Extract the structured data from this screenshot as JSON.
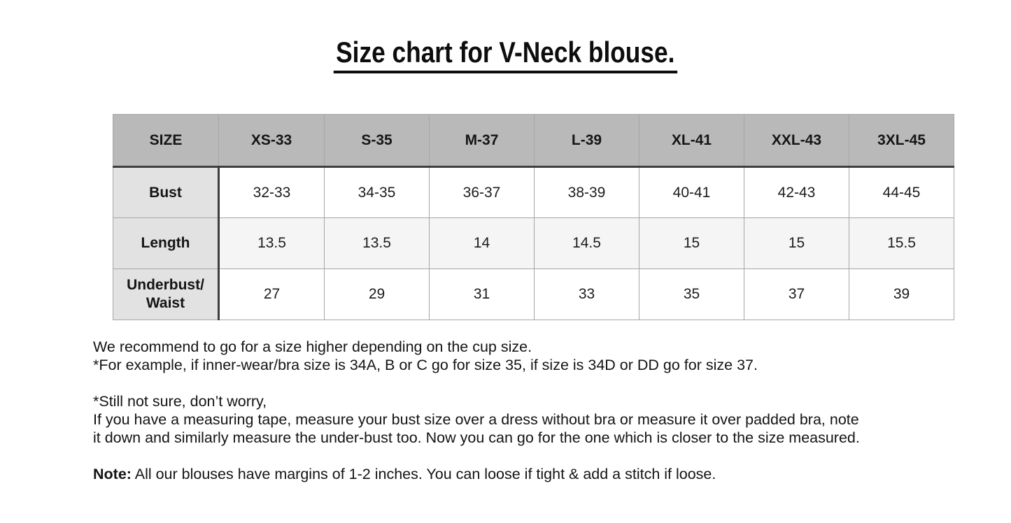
{
  "title": "Size chart for V-Neck blouse.",
  "colors": {
    "header_bg": "#b9b9b9",
    "label_column_bg": "#e2e2e2",
    "alt_row_bg": "#f5f5f5",
    "cell_border": "#a6a6a6",
    "dark_border": "#3d3d3d",
    "text": "#1c1c1c"
  },
  "table": {
    "header_row": [
      "SIZE",
      "XS-33",
      "S-35",
      "M-37",
      "L-39",
      "XL-41",
      "XXL-43",
      "3XL-45"
    ],
    "rows": [
      {
        "label": "Bust",
        "values": [
          "32-33",
          "34-35",
          "36-37",
          "38-39",
          "40-41",
          "42-43",
          "44-45"
        ]
      },
      {
        "label": "Length",
        "values": [
          "13.5",
          "13.5",
          "14",
          "14.5",
          "15",
          "15",
          "15.5"
        ]
      },
      {
        "label": "Underbust/\nWaist",
        "values": [
          "27",
          "29",
          "31",
          "33",
          "35",
          "37",
          "39"
        ]
      }
    ]
  },
  "notes": {
    "para1": {
      "0": "We recommend to go for a size higher depending on the cup size.",
      "1": "*For example, if inner-wear/bra size is 34A, B or C go for size 35, if size is 34D or DD go for size 37."
    },
    "para2": {
      "0": "*Still not sure, don’t worry,",
      "1": "If you have a measuring tape, measure your bust size over a dress without bra or measure it over padded bra, note",
      "2": "it down and similarly measure the under-bust too. Now you can go for the one which is closer to the size measured."
    },
    "note_label": "Note:",
    "note_text": " All our blouses have margins of 1-2 inches. You can loose if tight & add a stitch if loose."
  }
}
